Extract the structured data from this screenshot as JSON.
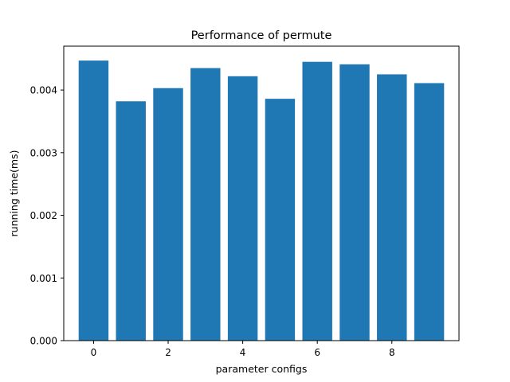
{
  "chart_data": {
    "type": "bar",
    "title": "Performance of permute",
    "xlabel": "parameter configs",
    "ylabel": "running time(ms)",
    "categories": [
      0,
      1,
      2,
      3,
      4,
      5,
      6,
      7,
      8,
      9
    ],
    "values": [
      0.00447,
      0.00382,
      0.00403,
      0.00435,
      0.00422,
      0.00386,
      0.00445,
      0.00441,
      0.00425,
      0.00411
    ],
    "xlim": [
      -0.8,
      9.8
    ],
    "ylim": [
      0,
      0.0047
    ],
    "xticks": [
      {
        "value": 0,
        "label": "0"
      },
      {
        "value": 2,
        "label": "2"
      },
      {
        "value": 4,
        "label": "4"
      },
      {
        "value": 6,
        "label": "6"
      },
      {
        "value": 8,
        "label": "8"
      }
    ],
    "yticks": [
      {
        "value": 0.0,
        "label": "0.000"
      },
      {
        "value": 0.001,
        "label": "0.001"
      },
      {
        "value": 0.002,
        "label": "0.002"
      },
      {
        "value": 0.003,
        "label": "0.003"
      },
      {
        "value": 0.004,
        "label": "0.004"
      }
    ],
    "bar_color": "#1f77b4",
    "grid": false,
    "legend": "none"
  }
}
